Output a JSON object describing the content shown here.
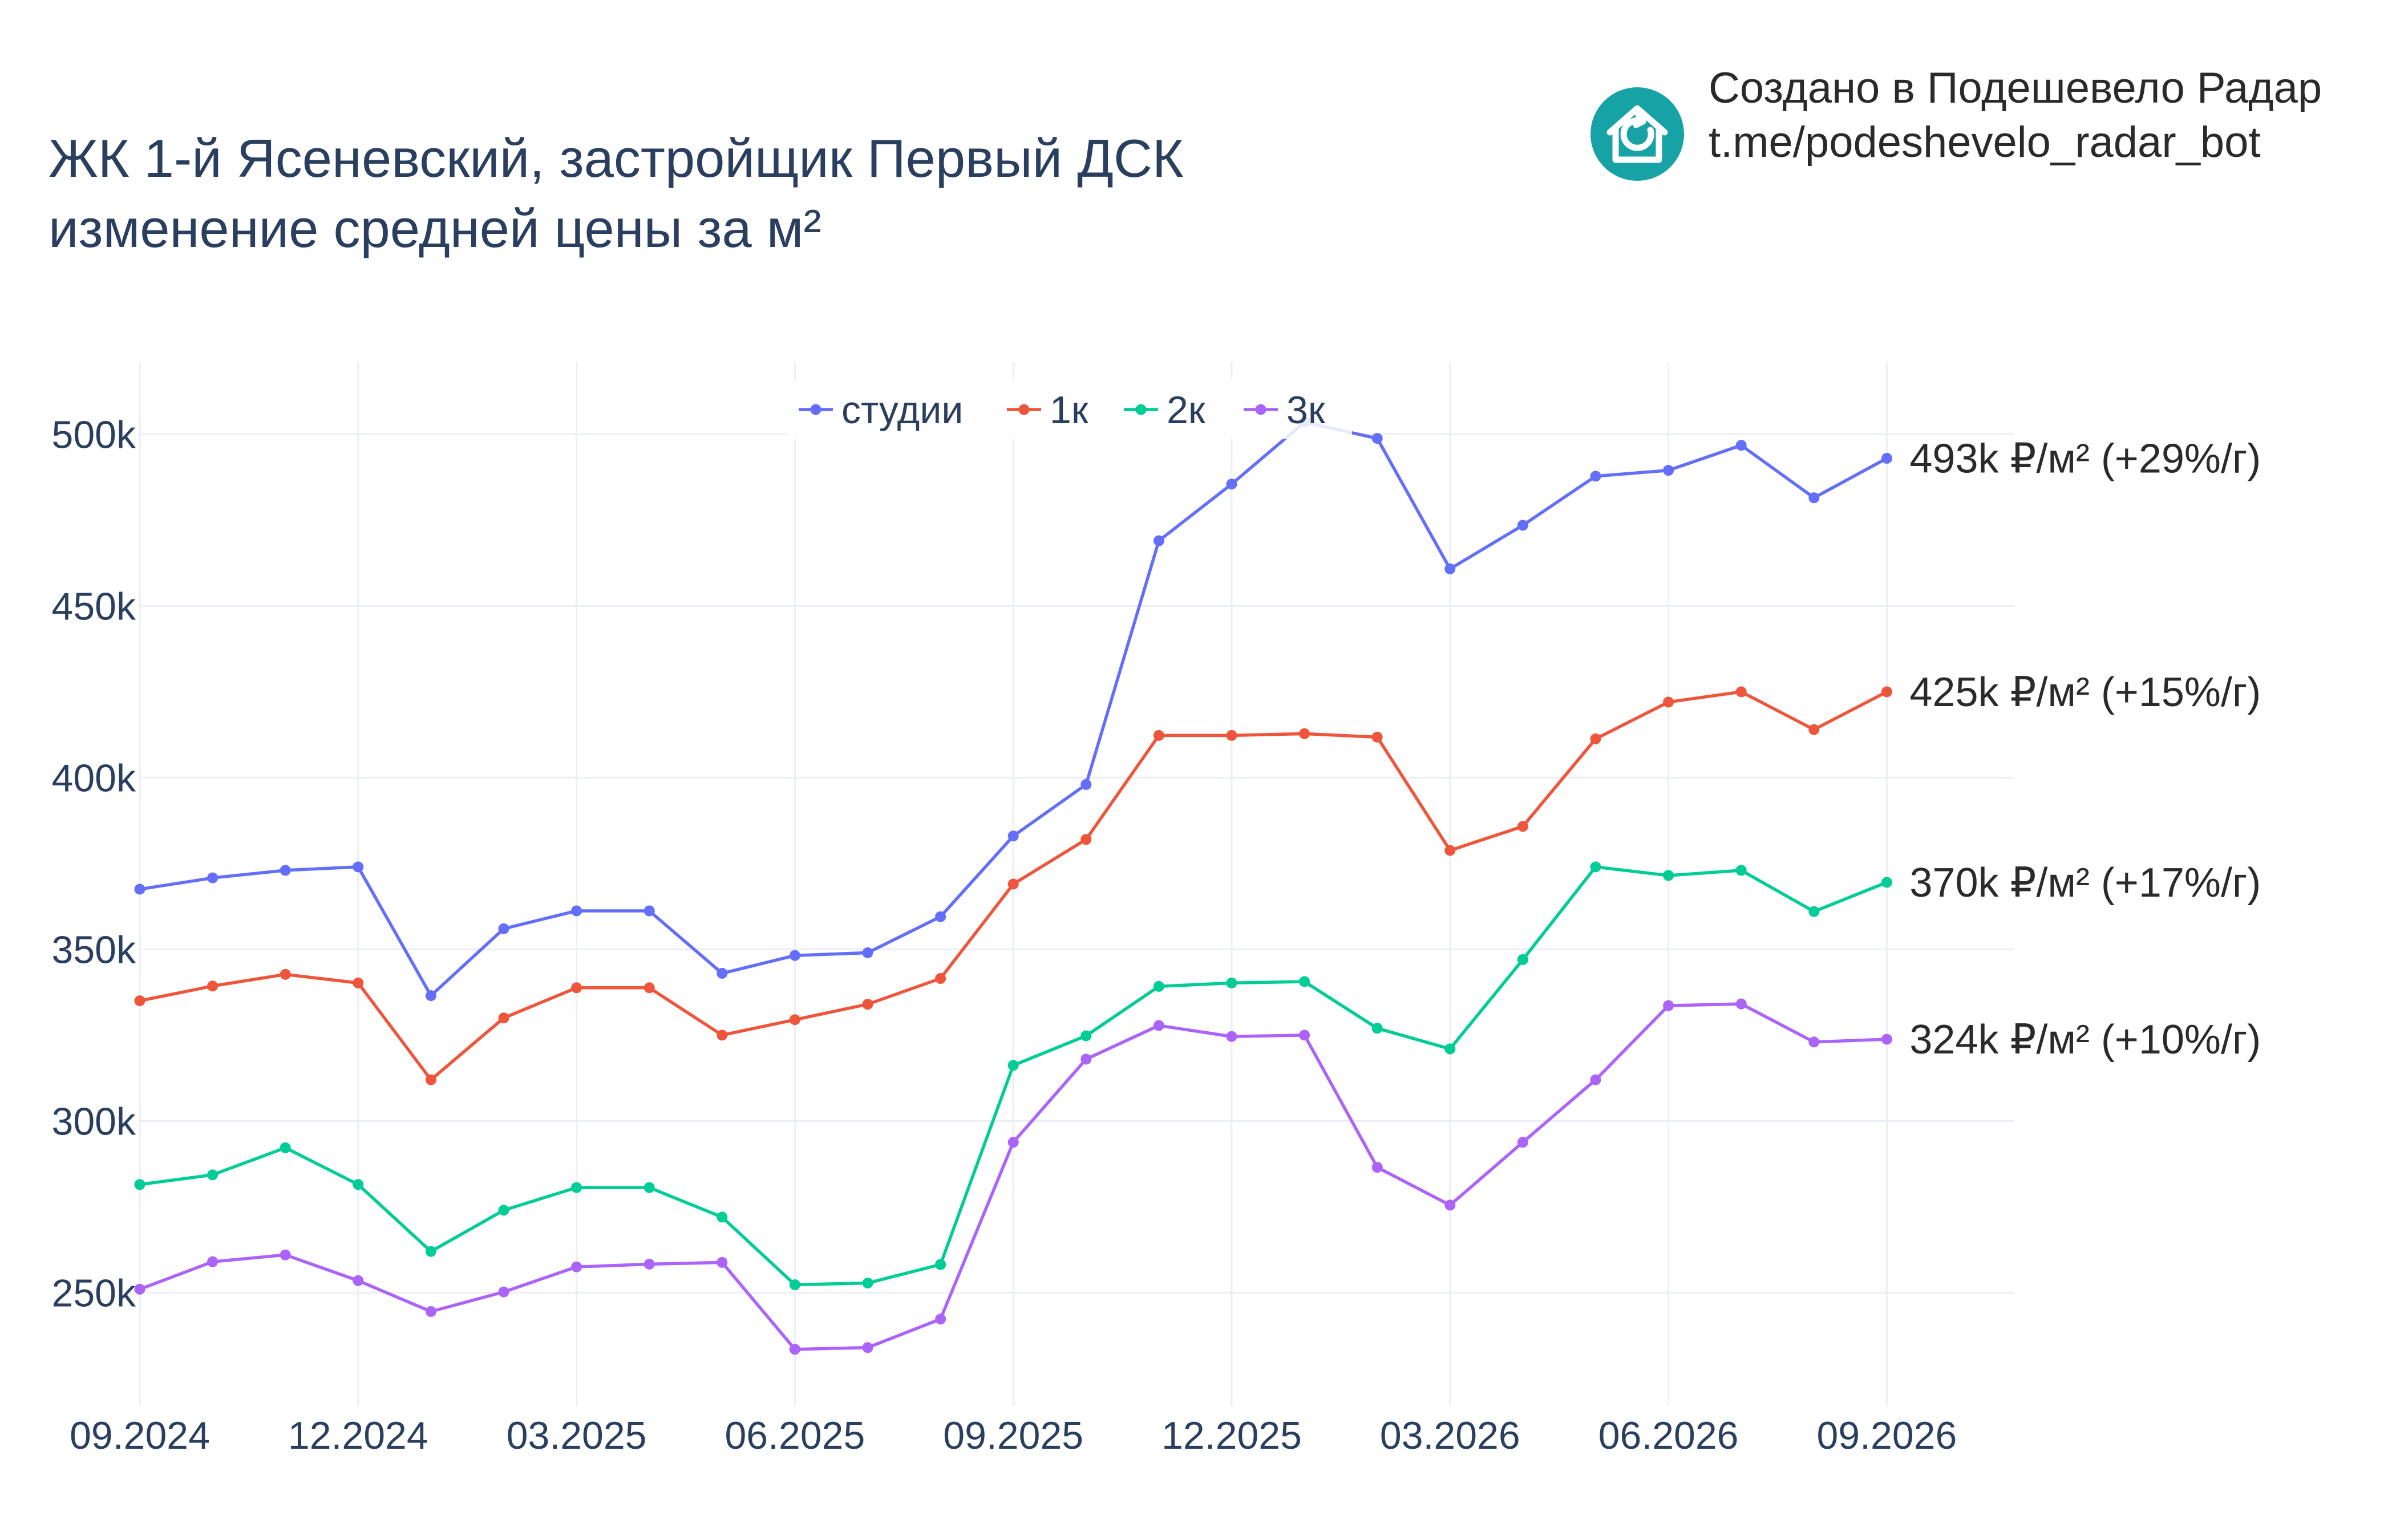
{
  "title": {
    "line1": "ЖК 1-й Ясеневский, застройщик Первый ДСК",
    "line2": "изменение средней цены за м²"
  },
  "branding": {
    "line1": "Создано в Подешевело Радар",
    "line2": "t.me/podeshevelo_radar_bot",
    "logo_icon": "house-refresh-icon",
    "logo_color": "#17a2a6"
  },
  "chart_data": {
    "type": "line",
    "x": [
      "2024-09",
      "2024-10",
      "2024-11",
      "2024-12",
      "2025-01",
      "2025-02",
      "2025-03",
      "2025-04",
      "2025-05",
      "2025-06",
      "2025-07",
      "2025-08",
      "2025-09",
      "2025-10",
      "2025-11",
      "2025-12",
      "2026-01",
      "2026-02",
      "2026-03",
      "2026-04",
      "2026-05",
      "2026-06",
      "2026-07",
      "2026-08",
      "2026-09"
    ],
    "x_tick_labels": [
      "09.2024",
      "12.2024",
      "03.2025",
      "06.2025",
      "09.2025",
      "12.2025",
      "03.2026",
      "06.2026",
      "09.2026"
    ],
    "y_ticks": [
      250000,
      300000,
      350000,
      400000,
      450000,
      500000
    ],
    "y_tick_labels": [
      "250k",
      "300k",
      "350k",
      "400k",
      "450k",
      "500k"
    ],
    "ylim": [
      217000,
      521000
    ],
    "grid": true,
    "legend_position": "top-center",
    "series": [
      {
        "name": "студии",
        "color": "#636efa",
        "values": [
          367500,
          370800,
          373000,
          374000,
          336500,
          356000,
          361200,
          361200,
          343000,
          348200,
          349000,
          359500,
          383000,
          398000,
          469000,
          485500,
          503500,
          498800,
          460800,
          473500,
          487800,
          489500,
          496800,
          481500,
          493000
        ],
        "end_label": "493k ₽/м² (+29%/г)"
      },
      {
        "name": "1к",
        "color": "#ef553b",
        "values": [
          335000,
          339300,
          342700,
          340200,
          312000,
          330000,
          338800,
          338800,
          325000,
          329500,
          334000,
          341500,
          369000,
          382000,
          412300,
          412300,
          412800,
          411800,
          378800,
          385800,
          411300,
          422000,
          425000,
          414000,
          425000
        ],
        "end_label": "425k ₽/м² (+15%/г)"
      },
      {
        "name": "2к",
        "color": "#00cc96",
        "values": [
          281500,
          284300,
          292200,
          281500,
          262000,
          274000,
          280600,
          280600,
          272000,
          252300,
          252800,
          258200,
          316200,
          324800,
          339200,
          340200,
          340600,
          327000,
          321000,
          347000,
          374000,
          371500,
          373000,
          361000,
          369500
        ],
        "end_label": "370k ₽/м² (+17%/г)"
      },
      {
        "name": "3к",
        "color": "#ab63fa",
        "values": [
          251000,
          259000,
          261000,
          253500,
          244500,
          250200,
          257500,
          258300,
          258800,
          233500,
          234000,
          242300,
          293800,
          318000,
          327800,
          324600,
          325000,
          286500,
          275500,
          293800,
          312000,
          333600,
          334100,
          323000,
          323800
        ],
        "end_label": "324k ₽/м² (+10%/г)"
      }
    ]
  }
}
